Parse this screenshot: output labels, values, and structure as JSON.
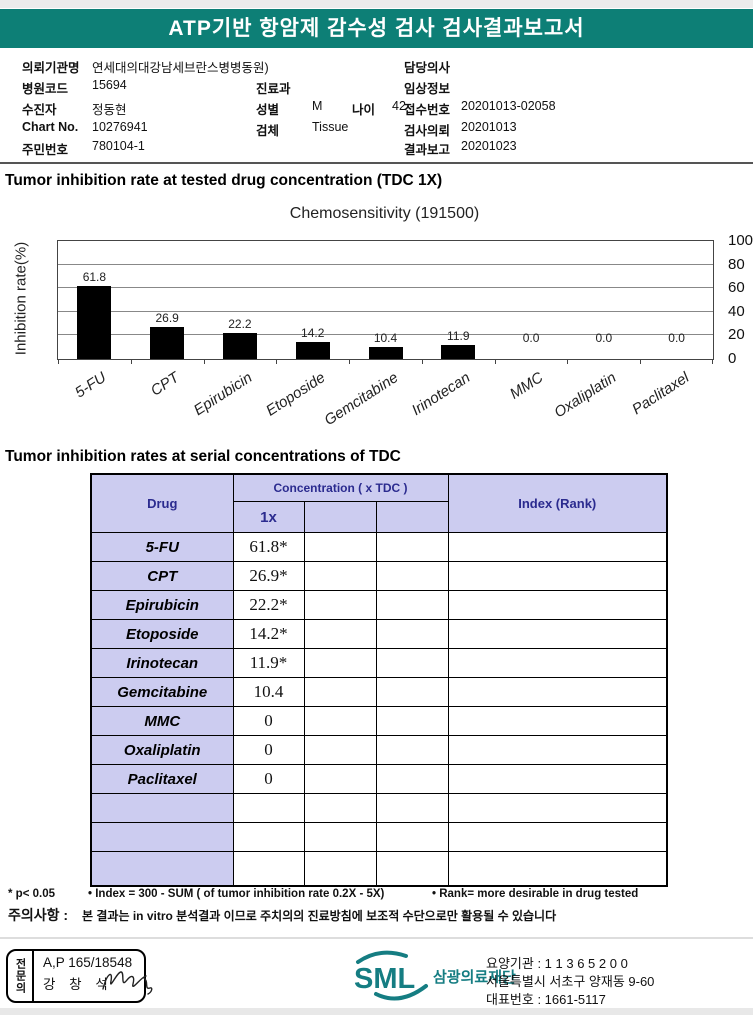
{
  "header": {
    "title": "ATP기반 항암제 감수성 검사 검사결과보고서"
  },
  "patient": {
    "org_label": "의뢰기관명",
    "org_value": "연세대의대강남세브란스병병동원)",
    "hospital_code_label": "병원코드",
    "hospital_code": "15694",
    "patient_label": "수진자",
    "patient_name": "정동현",
    "chart_no_label": "Chart No.",
    "chart_no": "10276941",
    "resident_no_label": "주민번호",
    "resident_no": "780104-1",
    "dept_label": "진료과",
    "sex_label": "성별",
    "sex": "M",
    "age_label": "나이",
    "age": "42",
    "specimen_label": "검체",
    "specimen": "Tissue",
    "doctor_label": "담당의사",
    "clinical_label": "임상정보",
    "accession_label": "접수번호",
    "accession_no": "20201013-02058",
    "request_label": "검사의뢰",
    "request_date": "20201013",
    "report_label": "결과보고",
    "report_date": "20201023"
  },
  "section1_title": "Tumor inhibition rate at tested drug concentration (TDC 1X)",
  "chart_data": {
    "type": "bar",
    "title": "Chemosensitivity (191500)",
    "ylabel": "Inhibition rate(%)",
    "categories": [
      "5-FU",
      "CPT",
      "Epirubicin",
      "Etoposide",
      "Gemcitabine",
      "Irinotecan",
      "MMC",
      "Oxaliplatin",
      "Paclitaxel"
    ],
    "values": [
      61.8,
      26.9,
      22.2,
      14.2,
      10.4,
      11.9,
      0.0,
      0.0,
      0.0
    ],
    "value_labels": [
      "61.8",
      "26.9",
      "22.2",
      "14.2",
      "10.4",
      "11.9",
      "0.0",
      "0.0",
      "0.0"
    ],
    "ylim": [
      0,
      100
    ],
    "yticks": [
      0,
      20,
      40,
      60,
      80,
      100
    ],
    "grid": true,
    "tick_label_side": "right",
    "bar_color": "#000000"
  },
  "section2_title": "Tumor inhibition rates at serial concentrations of TDC",
  "table": {
    "col_drug": "Drug",
    "col_concentration": "Concentration ( x TDC )",
    "col_1x": "1x",
    "col_index": "Index (Rank)",
    "rows": [
      {
        "drug": "5-FU",
        "c1": "61.8*"
      },
      {
        "drug": "CPT",
        "c1": "26.9*"
      },
      {
        "drug": "Epirubicin",
        "c1": "22.2*"
      },
      {
        "drug": "Etoposide",
        "c1": "14.2*"
      },
      {
        "drug": "Irinotecan",
        "c1": "11.9*"
      },
      {
        "drug": "Gemcitabine",
        "c1": "10.4"
      },
      {
        "drug": "MMC",
        "c1": "0"
      },
      {
        "drug": "Oxaliplatin",
        "c1": "0"
      },
      {
        "drug": "Paclitaxel",
        "c1": "0"
      },
      {
        "drug": "",
        "c1": ""
      },
      {
        "drug": "",
        "c1": ""
      },
      {
        "drug": "",
        "c1": ""
      }
    ]
  },
  "footnotes": {
    "line1_a": "* p< 0.05",
    "line1_b": "• Index = 300 - SUM ( of tumor inhibition rate 0.2X  -  5X)",
    "line1_c": "• Rank= more desirable in drug tested",
    "caution_label": "주의사항 :",
    "caution_text": "본 결과는 in vitro 분석결과 이므로 주치의의 진료방침에 보조적 수단으로만 활용될 수 있습니다"
  },
  "footer": {
    "stamp_role": "전문의",
    "stamp_line1": "A,P 165/18548",
    "stamp_name": "강 창 석",
    "logo_text": "SML",
    "org_name": "삼광의료재단",
    "addr_line1": "요양기관 : 1 1 3 6 5 2 0 0",
    "addr_line2": "서울특별시 서초구 양재동 9-60",
    "addr_line3": "대표번호 : 1661-5117"
  },
  "colors": {
    "accent_teal": "#0d7f76",
    "logo_teal": "#157d82",
    "table_lavender": "#ccccf0",
    "table_header_navy": "#2b2b8f",
    "bar_black": "#000000"
  }
}
